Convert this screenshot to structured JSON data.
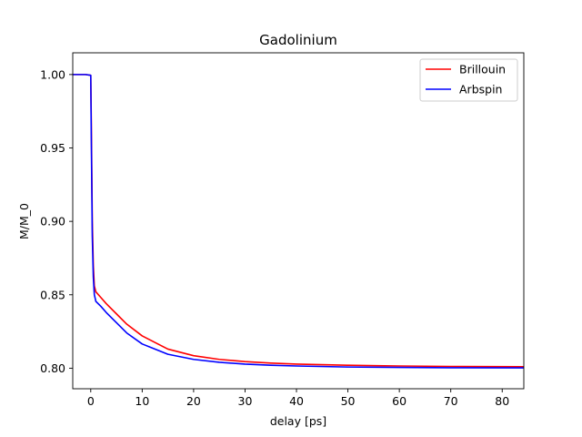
{
  "chart_data": {
    "type": "line",
    "title": "Gadolinium",
    "xlabel": "delay [ps]",
    "ylabel": "M/M_0",
    "xlim": [
      -3.5,
      84.2
    ],
    "ylim": [
      0.786,
      1.0148
    ],
    "grid": false,
    "legend_position": "top-right",
    "x_ticks": [
      0,
      10,
      20,
      30,
      40,
      50,
      60,
      70,
      80
    ],
    "x_tick_labels": [
      "0",
      "10",
      "20",
      "30",
      "40",
      "50",
      "60",
      "70",
      "80"
    ],
    "y_ticks": [
      0.8,
      0.85,
      0.9,
      0.95,
      1.0
    ],
    "y_tick_labels": [
      "0.80",
      "0.85",
      "0.90",
      "0.95",
      "1.00"
    ],
    "series": [
      {
        "name": "Brillouin",
        "color": "#ff0000",
        "x": [
          -3.5,
          -1,
          0,
          0.1,
          0.3,
          0.5,
          0.7,
          1,
          2,
          3,
          5,
          7,
          10,
          15,
          20,
          25,
          30,
          35,
          40,
          50,
          60,
          70,
          84.2
        ],
        "y": [
          1.0,
          1.0,
          0.9995,
          0.97,
          0.9,
          0.87,
          0.856,
          0.852,
          0.848,
          0.844,
          0.837,
          0.83,
          0.822,
          0.813,
          0.8085,
          0.806,
          0.8045,
          0.8035,
          0.8028,
          0.802,
          0.8015,
          0.8012,
          0.801
        ]
      },
      {
        "name": "Arbspin",
        "color": "#0000ff",
        "x": [
          -3.5,
          -1,
          0,
          0.1,
          0.3,
          0.5,
          0.7,
          1,
          2,
          3,
          5,
          7,
          10,
          15,
          20,
          25,
          30,
          35,
          40,
          50,
          60,
          70,
          84.2
        ],
        "y": [
          1.0,
          1.0,
          0.9995,
          0.96,
          0.89,
          0.862,
          0.85,
          0.8455,
          0.842,
          0.838,
          0.831,
          0.824,
          0.8165,
          0.8095,
          0.806,
          0.804,
          0.8028,
          0.802,
          0.8015,
          0.8008,
          0.8005,
          0.8003,
          0.8002
        ]
      }
    ]
  }
}
